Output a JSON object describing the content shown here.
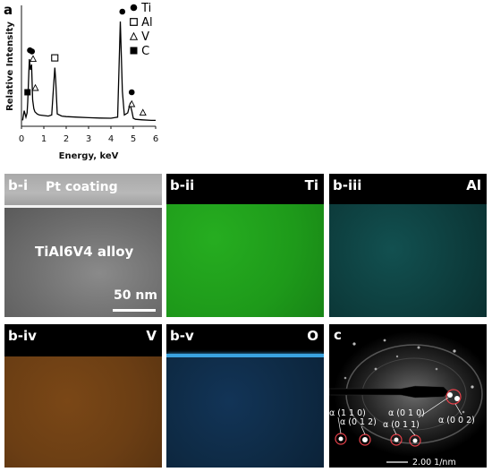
{
  "figure": {
    "panel_a_letter": "a",
    "panel_c_letter": "c"
  },
  "chart_data": {
    "type": "line",
    "title": "",
    "xlabel": "Energy, keV",
    "ylabel": "Relative Intensity",
    "xlim": [
      0,
      6
    ],
    "xticks": [
      "0",
      "1",
      "2",
      "3",
      "4",
      "5",
      "6"
    ],
    "series": [
      {
        "x": [
          0.05,
          0.12,
          0.2,
          0.25,
          0.28,
          0.35,
          0.4,
          0.45,
          0.5,
          0.55,
          0.6,
          0.7,
          0.8,
          1.0,
          1.2,
          1.35,
          1.45,
          1.49,
          1.53,
          1.6,
          1.8,
          2.0,
          2.5,
          3.0,
          3.5,
          4.0,
          4.3,
          4.42,
          4.51,
          4.6,
          4.75,
          4.85,
          4.93,
          5.0,
          5.1,
          5.4,
          5.8,
          6.0
        ],
        "y": [
          3,
          12,
          6,
          10,
          20,
          60,
          50,
          55,
          22,
          14,
          11,
          9,
          8,
          7.5,
          7,
          8,
          40,
          52,
          40,
          9,
          7,
          6.5,
          6,
          5.5,
          5.2,
          5,
          6,
          95,
          30,
          8,
          10,
          18,
          12,
          5,
          4,
          3.5,
          3,
          3
        ]
      }
    ],
    "legend": [
      "Ti",
      "Al",
      "V",
      "C"
    ],
    "markers": [
      {
        "symbol": "circle",
        "element": "Ti",
        "x": 0.38,
        "y": 64
      },
      {
        "symbol": "circle",
        "element": "Ti",
        "x": 0.47,
        "y": 63
      },
      {
        "symbol": "triangle",
        "element": "V",
        "x": 0.52,
        "y": 56
      },
      {
        "symbol": "triangle",
        "element": "V",
        "x": 0.62,
        "y": 29
      },
      {
        "symbol": "square",
        "element": "C",
        "x": 0.27,
        "y": 25
      },
      {
        "symbol": "square-open",
        "element": "Al",
        "x": 1.49,
        "y": 57
      },
      {
        "symbol": "circle",
        "element": "Ti",
        "x": 4.51,
        "y": 100
      },
      {
        "symbol": "circle",
        "element": "Ti",
        "x": 4.93,
        "y": 25
      },
      {
        "symbol": "triangle",
        "element": "V",
        "x": 4.93,
        "y": 14
      },
      {
        "symbol": "triangle",
        "element": "V",
        "x": 5.43,
        "y": 6
      }
    ]
  },
  "panels": {
    "bi": {
      "label": "b-i",
      "coating": "Pt coating",
      "alloy": "TiAl6V4 alloy",
      "scale": "50 nm"
    },
    "bii": {
      "label": "b-ii",
      "element": "Ti"
    },
    "biii": {
      "label": "b-iii",
      "element": "Al"
    },
    "biv": {
      "label": "b-iv",
      "element": "V"
    },
    "bv": {
      "label": "b-v",
      "element": "O"
    },
    "c": {
      "labels": [
        "α (1 1 0)",
        "α (0 1 2)",
        "α (0 1 0)",
        "α (0 1 1)",
        "α (0 0 2)"
      ],
      "scale": "2.00 1/nm"
    }
  },
  "colors": {
    "ti_map": "#1f9a1a",
    "al_map": "#0e3b3b",
    "v_map": "#6b3e14",
    "o_map": "#0e2a44",
    "o_band": "#3aa3e0",
    "circle": "#e8404a"
  }
}
